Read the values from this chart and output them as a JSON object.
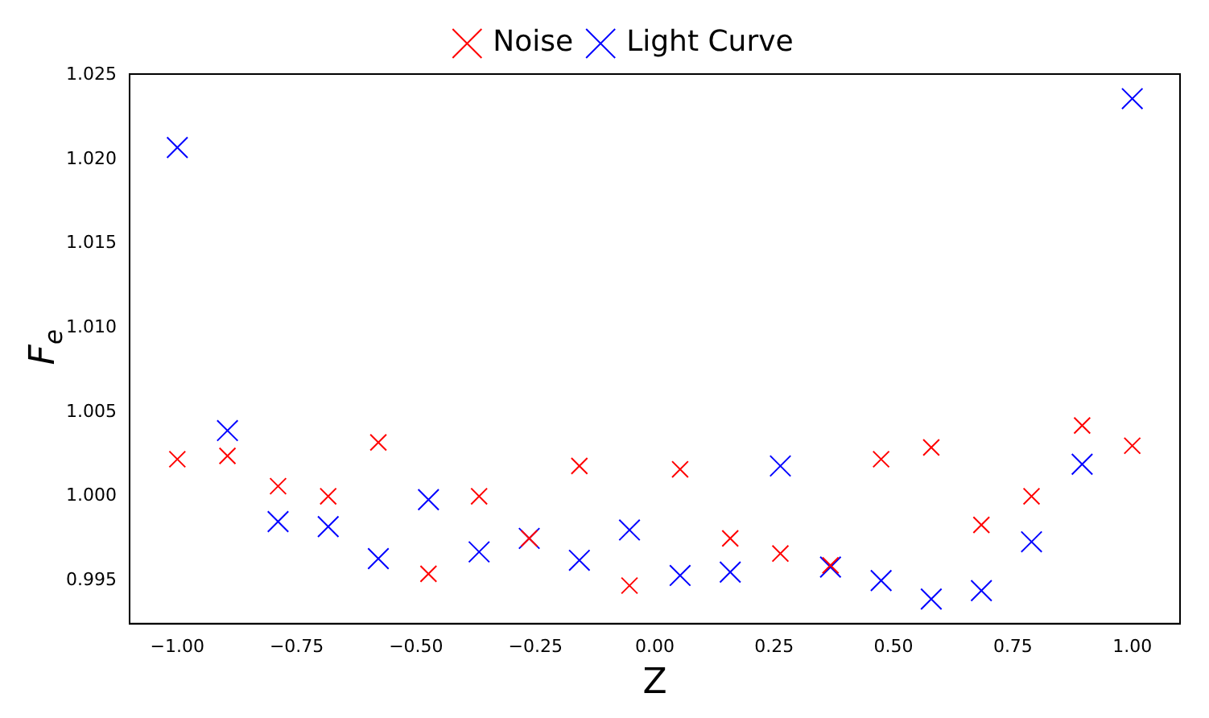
{
  "chart_data": {
    "type": "scatter",
    "xlabel": "Z",
    "ylabel": "F$_{e}$",
    "marker": "cross",
    "legend": "top",
    "grid": false,
    "x": [
      -1,
      -0.895,
      -0.789,
      -0.684,
      -0.579,
      -0.474,
      -0.368,
      -0.263,
      -0.158,
      -0.053,
      0.053,
      0.158,
      0.263,
      0.368,
      0.474,
      0.579,
      0.684,
      0.789,
      0.895,
      1
    ],
    "series": [
      {
        "name": "Noise",
        "color": "#ff0000",
        "values": [
          1.0022,
          1.0024,
          1.0006,
          1.0,
          1.0032,
          0.9954,
          1.0,
          0.9975,
          1.0018,
          0.9947,
          1.0016,
          0.9975,
          0.9966,
          0.9959,
          1.0022,
          1.0029,
          0.9983,
          1.0,
          1.0042,
          1.003
        ]
      },
      {
        "name": "Light Curve",
        "color": "#0000ff",
        "values": [
          1.0207,
          1.0039,
          0.9985,
          0.9982,
          0.9963,
          0.9998,
          0.9967,
          0.9975,
          0.9962,
          0.998,
          0.9953,
          0.9955,
          1.0018,
          0.9958,
          0.995,
          0.9939,
          0.9944,
          0.9973,
          1.0019,
          1.0236
        ]
      }
    ],
    "xlim": [
      -1.1,
      1.1
    ],
    "ylim": [
      0.99244,
      1.02506
    ],
    "xticks": [
      {
        "value": -1,
        "label": "−1.00"
      },
      {
        "value": -0.75,
        "label": "−0.75"
      },
      {
        "value": -0.5,
        "label": "−0.50"
      },
      {
        "value": -0.25,
        "label": "−0.25"
      },
      {
        "value": 0,
        "label": "0.00"
      },
      {
        "value": 0.25,
        "label": "0.25"
      },
      {
        "value": 0.5,
        "label": "0.50"
      },
      {
        "value": 0.75,
        "label": "0.75"
      },
      {
        "value": 1,
        "label": "1.00"
      }
    ],
    "yticks": [
      {
        "value": 0.995,
        "label": "0.995"
      },
      {
        "value": 1,
        "label": "1.000"
      },
      {
        "value": 1.005,
        "label": "1.005"
      },
      {
        "value": 1.01,
        "label": "1.010"
      },
      {
        "value": 1.015,
        "label": "1.015"
      },
      {
        "value": 1.02,
        "label": "1.020"
      },
      {
        "value": 1.025,
        "label": "1.025"
      }
    ]
  }
}
